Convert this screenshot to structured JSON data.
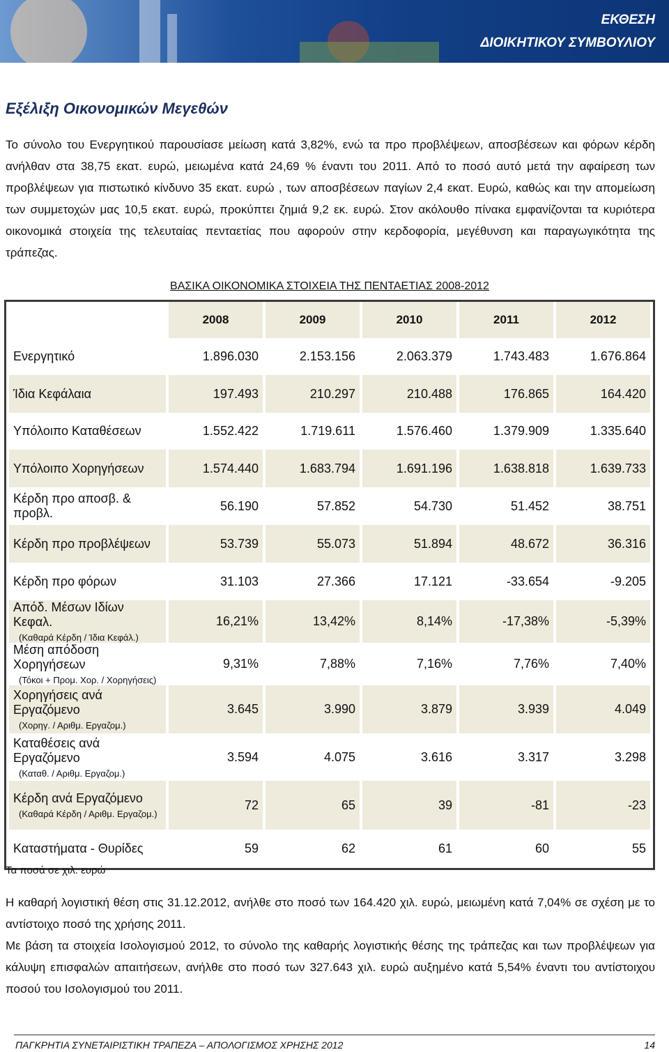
{
  "header": {
    "line1": "ΕΚΘΕΣΗ",
    "line2": "ΔΙΟΙΚΗΤΙΚΟΥ ΣΥΜΒΟΥΛΙΟΥ"
  },
  "section_title": "Εξέλιξη Οικονομικών Μεγεθών",
  "intro": [
    "Το σύνολο του Ενεργητικού παρουσίασε μείωση κατά 3,82%, ενώ τα προ προβλέψεων, αποσβέσεων και φόρων κέρδη ανήλθαν στα 38,75 εκατ. ευρώ, μειωμένα κατά 24,69 % έναντι του 2011. Από το ποσό αυτό μετά την αφαίρεση των προβλέψεων για πιστωτικό κίνδυνο 35 εκατ. ευρώ , των αποσβέσεων παγίων 2,4 εκατ. Ευρώ, καθώς και την απομείωση των συμμετοχών μας 10,5 εκατ. ευρώ, προκύπτει ζημιά 9,2 εκ. ευρώ. Στον ακόλουθο πίνακα εμφανίζονται τα κυριότερα οικονομικά στοιχεία της τελευταίας πενταετίας που αφορούν στην κερδοφορία, μεγέθυνση και παραγωγικότητα της τράπεζας."
  ],
  "table": {
    "title": "ΒΑΣΙΚΑ ΟΙΚΟΝΟΜΙΚΑ ΣΤΟΙΧΕΙΑ ΤΗΣ ΠΕΝΤΑΕΤΙΑΣ 2008-2012",
    "columns": [
      "2008",
      "2009",
      "2010",
      "2011",
      "2012"
    ],
    "rows": [
      {
        "label": "Ενεργητικό",
        "cells": [
          "1.896.030",
          "2.153.156",
          "2.063.379",
          "1.743.483",
          "1.676.864"
        ]
      },
      {
        "label": "Ίδια Κεφάλαια",
        "cells": [
          "197.493",
          "210.297",
          "210.488",
          "176.865",
          "164.420"
        ]
      },
      {
        "label": "Υπόλοιπο Καταθέσεων",
        "cells": [
          "1.552.422",
          "1.719.611",
          "1.576.460",
          "1.379.909",
          "1.335.640"
        ]
      },
      {
        "label": "Υπόλοιπο Χορηγήσεων",
        "cells": [
          "1.574.440",
          "1.683.794",
          "1.691.196",
          "1.638.818",
          "1.639.733"
        ]
      },
      {
        "label": "Κέρδη προ αποσβ. & προβλ.",
        "cells": [
          "56.190",
          "57.852",
          "54.730",
          "51.452",
          "38.751"
        ]
      },
      {
        "label": "Κέρδη προ προβλέψεων",
        "cells": [
          "53.739",
          "55.073",
          "51.894",
          "48.672",
          "36.316"
        ]
      },
      {
        "label": "Κέρδη προ φόρων",
        "cells": [
          "31.103",
          "27.366",
          "17.121",
          "-33.654",
          "-9.205"
        ]
      },
      {
        "label": "Απόδ. Μέσων Ιδίων Κεφαλ.",
        "sublabel": "(Καθαρά Κέρδη / Ίδια Κεφάλ.)",
        "cells": [
          "16,21%",
          "13,42%",
          "8,14%",
          "-17,38%",
          "-5,39%"
        ]
      },
      {
        "label": "Μέση απόδοση Χορηγήσεων",
        "sublabel": "(Τόκοι + Προμ. Χορ. / Χορηγήσεις)",
        "cells": [
          "9,31%",
          "7,88%",
          "7,16%",
          "7,76%",
          "7,40%"
        ]
      },
      {
        "label": "Χορηγήσεις ανά Εργαζόμενο",
        "sublabel": "(Χορηγ. / Αριθμ. Εργαζομ.)",
        "cells": [
          "3.645",
          "3.990",
          "3.879",
          "3.939",
          "4.049"
        ]
      },
      {
        "label": "Καταθέσεις ανά Εργαζόμενο",
        "sublabel": "(Καταθ. / Αριθμ. Εργαζομ.)",
        "cells": [
          "3.594",
          "4.075",
          "3.616",
          "3.317",
          "3.298"
        ]
      },
      {
        "label": "Κέρδη ανά Εργαζόμενο",
        "sublabel": "(Καθαρά Κέρδη / Αριθμ. Εργαζομ.)",
        "cells": [
          "72",
          "65",
          "39",
          "-81",
          "-23"
        ]
      },
      {
        "label": "Καταστήματα - Θυρίδες",
        "cells": [
          "59",
          "62",
          "61",
          "60",
          "55"
        ]
      }
    ],
    "note": "Τα ποσά σε χιλ. ευρώ"
  },
  "closing": [
    "Η καθαρή λογιστική θέση στις 31.12.2012, ανήλθε στο ποσό των 164.420 χιλ. ευρώ, μειωμένη κατά 7,04% σε σχέση με το αντίστοιχο ποσό της χρήσης 2011.",
    "Με βάση τα στοιχεία Ισολογισμού 2012, το σύνολο της καθαρής λογιστικής θέσης της τράπεζας και των προβλέψεων για κάλυψη επισφαλών απαιτήσεων, ανήλθε στο ποσό των 327.643 χιλ. ευρώ αυξημένο κατά 5,54% έναντι του αντίστοιχου ποσού του Ισολογισμού του 2011."
  ],
  "footer": {
    "text": "ΠΑΓΚΡΗΤΙΑ ΣΥΝΕΤΑΙΡΙΣΤΙΚΗ ΤΡΑΠΕΖΑ – ΑΠΟΛΟΓΙΣΜΟΣ ΧΡΗΣΗΣ 2012",
    "page": "14"
  }
}
